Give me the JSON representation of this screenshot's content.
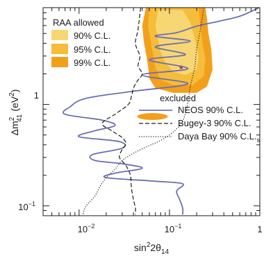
{
  "chart_data": {
    "type": "line",
    "title": "",
    "xlabel_main": "sin",
    "xlabel_sup": "2",
    "xlabel_rest": "2θ",
    "xlabel_sub": "14",
    "ylabel_main": "Δm",
    "ylabel_sup": "2",
    "ylabel_sub": "41",
    "ylabel_unit": "(eV",
    "ylabel_unit_sup": "2",
    "ylabel_unit_end": ")",
    "xscale": "log",
    "yscale": "log",
    "xlim": [
      0.004,
      1
    ],
    "ylim": [
      0.08,
      9
    ],
    "x_ticks": [
      {
        "value": 0.01,
        "base": "10",
        "exp": "−2"
      },
      {
        "value": 0.1,
        "base": "10",
        "exp": "−1"
      },
      {
        "value": 1,
        "base": "1",
        "exp": ""
      }
    ],
    "y_ticks": [
      {
        "value": 1,
        "base": "1",
        "exp": ""
      },
      {
        "value": 0.1,
        "base": "10",
        "exp": "−1"
      }
    ],
    "raa_title": "RAA allowed",
    "raa_regions": [
      {
        "name": "90% C.L.",
        "color": "#f7d774"
      },
      {
        "name": "95% C.L.",
        "color": "#f5bd3a"
      },
      {
        "name": "99% C.L.",
        "color": "#f2a01c"
      }
    ],
    "best_fit": {
      "x": 0.135,
      "y": 2.35,
      "color": "#c0392b"
    },
    "excluded_title": "excluded",
    "series": [
      {
        "name": "NEOS 90% C.L.",
        "style": "solid",
        "color": "#6b6fb2",
        "points": [
          [
            0.98,
            9.0
          ],
          [
            0.6,
            7.4
          ],
          [
            0.35,
            6.6
          ],
          [
            0.2,
            5.9
          ],
          [
            0.12,
            5.1
          ],
          [
            0.07,
            4.7
          ],
          [
            0.17,
            4.2
          ],
          [
            0.07,
            3.7
          ],
          [
            0.15,
            3.1
          ],
          [
            0.06,
            2.75
          ],
          [
            0.16,
            2.25
          ],
          [
            0.05,
            1.95
          ],
          [
            0.16,
            1.6
          ],
          [
            0.04,
            1.35
          ],
          [
            0.012,
            1.15
          ],
          [
            0.008,
            0.95
          ],
          [
            0.007,
            0.8
          ],
          [
            0.018,
            0.7
          ],
          [
            0.025,
            0.62
          ],
          [
            0.015,
            0.55
          ],
          [
            0.01,
            0.48
          ],
          [
            0.028,
            0.43
          ],
          [
            0.03,
            0.37
          ],
          [
            0.014,
            0.32
          ],
          [
            0.015,
            0.28
          ],
          [
            0.03,
            0.26
          ],
          [
            0.05,
            0.235
          ],
          [
            0.025,
            0.21
          ],
          [
            0.02,
            0.19
          ],
          [
            0.07,
            0.175
          ],
          [
            0.14,
            0.165
          ],
          [
            0.12,
            0.14
          ],
          [
            0.13,
            0.115
          ],
          [
            0.14,
            0.095
          ],
          [
            0.14,
            0.082
          ]
        ]
      },
      {
        "name": "Bugey-3 90% C.L.",
        "style": "dashed",
        "color": "#1a1a1a",
        "points": [
          [
            0.048,
            9.0
          ],
          [
            0.045,
            5.5
          ],
          [
            0.042,
            4.0
          ],
          [
            0.047,
            3.0
          ],
          [
            0.045,
            2.4
          ],
          [
            0.05,
            2.0
          ],
          [
            0.044,
            1.7
          ],
          [
            0.04,
            1.45
          ],
          [
            0.038,
            1.2
          ],
          [
            0.035,
            1.0
          ],
          [
            0.025,
            0.8
          ],
          [
            0.018,
            0.65
          ],
          [
            0.023,
            0.55
          ],
          [
            0.03,
            0.47
          ],
          [
            0.033,
            0.41
          ],
          [
            0.03,
            0.36
          ],
          [
            0.028,
            0.3
          ],
          [
            0.033,
            0.25
          ],
          [
            0.037,
            0.2
          ],
          [
            0.038,
            0.15
          ],
          [
            0.04,
            0.115
          ],
          [
            0.042,
            0.095
          ],
          [
            0.042,
            0.082
          ]
        ]
      },
      {
        "name": "Daya Bay 90% C.L.",
        "name_sub": "s",
        "style": "dotted",
        "color": "#1a1a1a",
        "points": [
          [
            0.24,
            9.0
          ],
          [
            0.22,
            5.5
          ],
          [
            0.2,
            3.5
          ],
          [
            0.19,
            2.3
          ],
          [
            0.17,
            1.5
          ],
          [
            0.16,
            1.05
          ],
          [
            0.15,
            0.8
          ],
          [
            0.13,
            0.62
          ],
          [
            0.1,
            0.5
          ],
          [
            0.075,
            0.43
          ],
          [
            0.055,
            0.38
          ],
          [
            0.04,
            0.33
          ],
          [
            0.03,
            0.28
          ],
          [
            0.025,
            0.23
          ],
          [
            0.02,
            0.19
          ],
          [
            0.017,
            0.155
          ],
          [
            0.015,
            0.125
          ],
          [
            0.012,
            0.1
          ],
          [
            0.011,
            0.082
          ]
        ]
      }
    ],
    "grid": false,
    "legend": "inside, top-left (RAA) and center-right (excluded)"
  }
}
